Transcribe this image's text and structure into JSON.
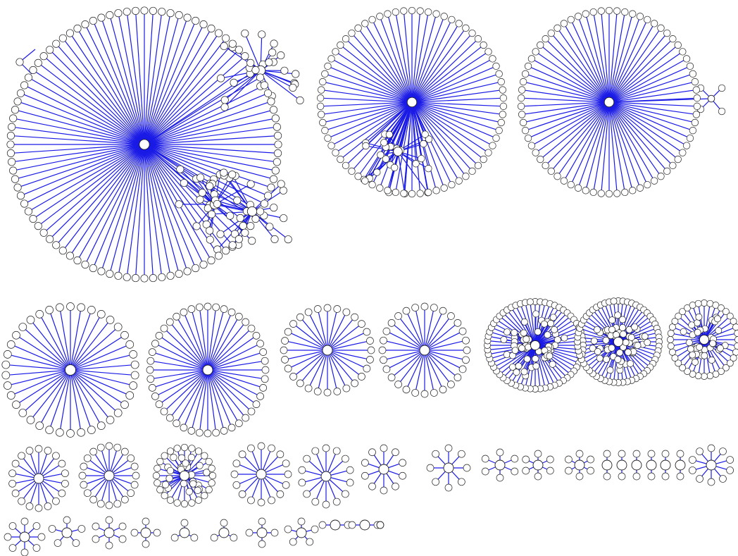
{
  "diagram": {
    "type": "network-graph",
    "edge_color": "#1a1ae6",
    "node_fill": "#ffffff",
    "node_stroke": "#222222",
    "components": [
      {
        "id": "c1",
        "kind": "mega-cluster"
      },
      {
        "id": "c2",
        "kind": "mega-cluster"
      },
      {
        "id": "c3",
        "kind": "star"
      },
      {
        "id": "c4",
        "kind": "star"
      },
      {
        "id": "c5",
        "kind": "star"
      },
      {
        "id": "c6",
        "kind": "star"
      },
      {
        "id": "c7",
        "kind": "star"
      },
      {
        "id": "c8",
        "kind": "star"
      },
      {
        "id": "c9",
        "kind": "star"
      },
      {
        "id": "c10",
        "kind": "star"
      },
      {
        "id": "c11",
        "kind": "star"
      },
      {
        "id": "c12",
        "kind": "star"
      },
      {
        "id": "c13",
        "kind": "star"
      },
      {
        "id": "c14",
        "kind": "star"
      },
      {
        "id": "c15",
        "kind": "star"
      },
      {
        "id": "c16",
        "kind": "star"
      },
      {
        "id": "c17",
        "kind": "star"
      },
      {
        "id": "c18",
        "kind": "star"
      },
      {
        "id": "c19",
        "kind": "star"
      },
      {
        "id": "c20",
        "kind": "star"
      },
      {
        "id": "c21",
        "kind": "star"
      },
      {
        "id": "c22",
        "kind": "star"
      },
      {
        "id": "c23",
        "kind": "star"
      },
      {
        "id": "c24",
        "kind": "star"
      },
      {
        "id": "c25",
        "kind": "star"
      },
      {
        "id": "c26",
        "kind": "star"
      },
      {
        "id": "c27",
        "kind": "star"
      },
      {
        "id": "c28",
        "kind": "star"
      },
      {
        "id": "c29",
        "kind": "star"
      },
      {
        "id": "c30",
        "kind": "star"
      },
      {
        "id": "c31",
        "kind": "star"
      },
      {
        "id": "c32",
        "kind": "star"
      },
      {
        "id": "c33",
        "kind": "star"
      },
      {
        "id": "c34",
        "kind": "star"
      },
      {
        "id": "c35",
        "kind": "star"
      },
      {
        "id": "c36",
        "kind": "star"
      },
      {
        "id": "c37",
        "kind": "star"
      },
      {
        "id": "c38",
        "kind": "star"
      }
    ]
  }
}
